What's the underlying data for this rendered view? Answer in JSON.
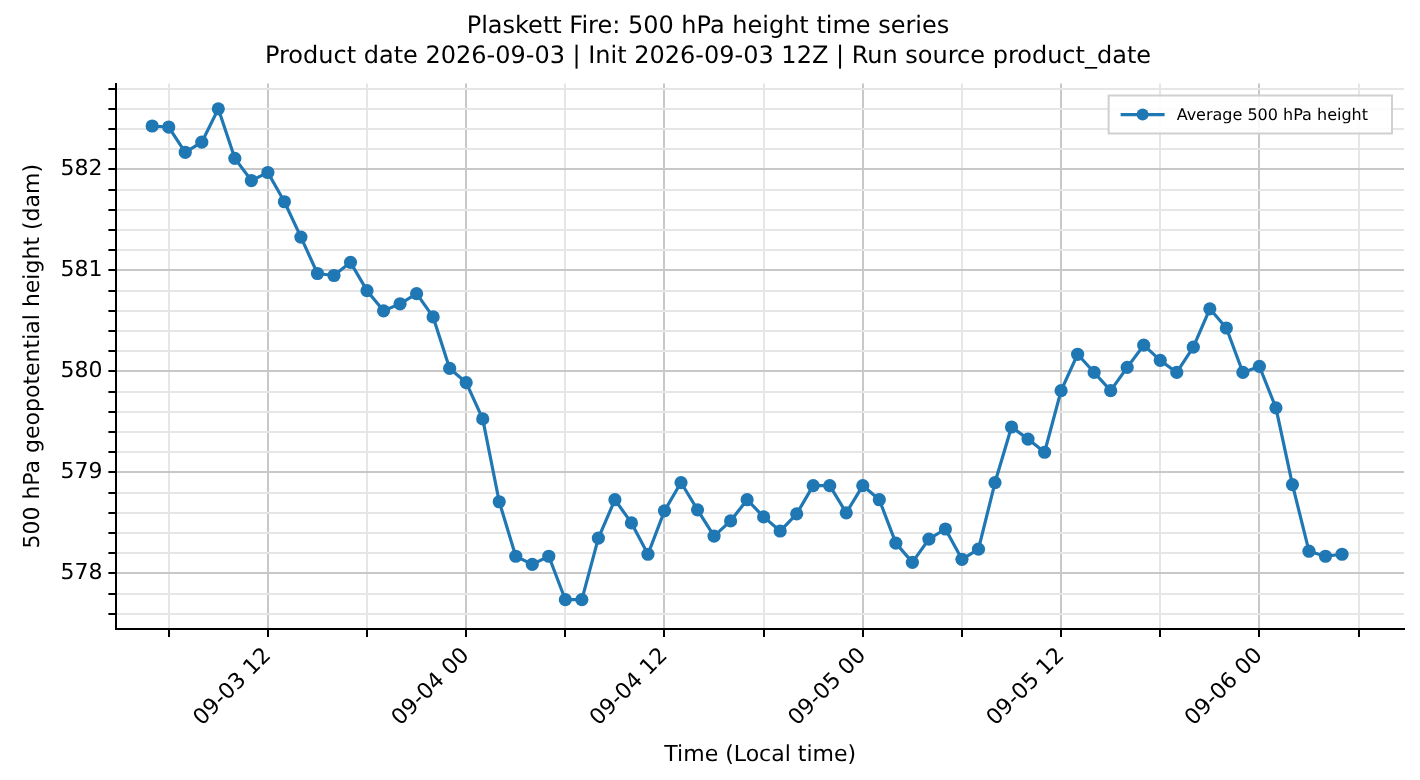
{
  "chart_data": {
    "type": "line",
    "title": "Plaskett Fire: 500 hPa height time series",
    "subtitle": "Product date 2026-09-03 | Init 2026-09-03 12Z | Run source product_date",
    "xlabel": "Time (Local time)",
    "ylabel": "500 hPa geopotential height (dam)",
    "x": [
      "2026-09-03T05:00",
      "2026-09-03T06:00",
      "2026-09-03T07:00",
      "2026-09-03T08:00",
      "2026-09-03T09:00",
      "2026-09-03T10:00",
      "2026-09-03T11:00",
      "2026-09-03T12:00",
      "2026-09-03T13:00",
      "2026-09-03T14:00",
      "2026-09-03T15:00",
      "2026-09-03T16:00",
      "2026-09-03T17:00",
      "2026-09-03T18:00",
      "2026-09-03T19:00",
      "2026-09-03T20:00",
      "2026-09-03T21:00",
      "2026-09-03T22:00",
      "2026-09-03T23:00",
      "2026-09-04T00:00",
      "2026-09-04T01:00",
      "2026-09-04T02:00",
      "2026-09-04T03:00",
      "2026-09-04T04:00",
      "2026-09-04T05:00",
      "2026-09-04T06:00",
      "2026-09-04T07:00",
      "2026-09-04T08:00",
      "2026-09-04T09:00",
      "2026-09-04T10:00",
      "2026-09-04T11:00",
      "2026-09-04T12:00",
      "2026-09-04T13:00",
      "2026-09-04T14:00",
      "2026-09-04T15:00",
      "2026-09-04T16:00",
      "2026-09-04T17:00",
      "2026-09-04T18:00",
      "2026-09-04T19:00",
      "2026-09-04T20:00",
      "2026-09-04T21:00",
      "2026-09-04T22:00",
      "2026-09-04T23:00",
      "2026-09-05T00:00",
      "2026-09-05T01:00",
      "2026-09-05T02:00",
      "2026-09-05T03:00",
      "2026-09-05T04:00",
      "2026-09-05T05:00",
      "2026-09-05T06:00",
      "2026-09-05T07:00",
      "2026-09-05T08:00",
      "2026-09-05T09:00",
      "2026-09-05T10:00",
      "2026-09-05T11:00",
      "2026-09-05T12:00",
      "2026-09-05T13:00",
      "2026-09-05T14:00",
      "2026-09-05T15:00",
      "2026-09-05T16:00",
      "2026-09-05T17:00",
      "2026-09-05T18:00",
      "2026-09-05T19:00",
      "2026-09-05T20:00",
      "2026-09-05T21:00",
      "2026-09-05T22:00",
      "2026-09-05T23:00",
      "2026-09-06T00:00",
      "2026-09-06T01:00",
      "2026-09-06T02:00",
      "2026-09-06T03:00",
      "2026-09-06T04:00",
      "2026-09-06T05:00"
    ],
    "series": [
      {
        "name": "Average 500 hPa height",
        "color": "#1f77b4",
        "values": [
          582.43,
          582.42,
          582.17,
          582.27,
          582.6,
          582.11,
          581.89,
          581.97,
          581.68,
          581.33,
          580.97,
          580.95,
          581.08,
          580.8,
          580.6,
          580.67,
          580.77,
          580.54,
          580.03,
          579.89,
          579.53,
          578.71,
          578.17,
          578.09,
          578.17,
          577.74,
          577.74,
          578.35,
          578.73,
          578.5,
          578.19,
          578.62,
          578.9,
          578.63,
          578.37,
          578.52,
          578.73,
          578.56,
          578.42,
          578.59,
          578.87,
          578.87,
          578.6,
          578.87,
          578.73,
          578.3,
          578.11,
          578.34,
          578.44,
          578.14,
          578.24,
          578.9,
          579.45,
          579.33,
          579.2,
          579.81,
          580.17,
          579.99,
          579.81,
          580.04,
          580.26,
          580.11,
          579.99,
          580.24,
          580.62,
          580.43,
          579.99,
          580.05,
          579.64,
          578.88,
          578.22,
          578.17,
          578.19
        ]
      }
    ],
    "xlim": [
      "2026-09-03T02:50",
      "2026-09-06T08:45"
    ],
    "xticks": [
      {
        "value": "2026-09-03T06:00",
        "label": null
      },
      {
        "value": "2026-09-03T12:00",
        "label": "09-03 12"
      },
      {
        "value": "2026-09-03T18:00",
        "label": null
      },
      {
        "value": "2026-09-04T00:00",
        "label": "09-04 00"
      },
      {
        "value": "2026-09-04T06:00",
        "label": null
      },
      {
        "value": "2026-09-04T12:00",
        "label": "09-04 12"
      },
      {
        "value": "2026-09-04T18:00",
        "label": null
      },
      {
        "value": "2026-09-05T00:00",
        "label": "09-05 00"
      },
      {
        "value": "2026-09-05T06:00",
        "label": null
      },
      {
        "value": "2026-09-05T12:00",
        "label": "09-05 12"
      },
      {
        "value": "2026-09-05T18:00",
        "label": null
      },
      {
        "value": "2026-09-06T00:00",
        "label": "09-06 00"
      },
      {
        "value": "2026-09-06T06:00",
        "label": null
      }
    ],
    "ylim": [
      577.45,
      582.85
    ],
    "yticks": [
      {
        "value": 577.6,
        "label": null
      },
      {
        "value": 577.8,
        "label": null
      },
      578,
      {
        "value": 578.2,
        "label": null
      },
      {
        "value": 578.4,
        "label": null
      },
      {
        "value": 578.6,
        "label": null
      },
      {
        "value": 578.8,
        "label": null
      },
      579,
      {
        "value": 579.2,
        "label": null
      },
      {
        "value": 579.4,
        "label": null
      },
      {
        "value": 579.6,
        "label": null
      },
      {
        "value": 579.8,
        "label": null
      },
      580,
      {
        "value": 580.2,
        "label": null
      },
      {
        "value": 580.4,
        "label": null
      },
      {
        "value": 580.6,
        "label": null
      },
      {
        "value": 580.8,
        "label": null
      },
      581,
      {
        "value": 581.2,
        "label": null
      },
      {
        "value": 581.4,
        "label": null
      },
      {
        "value": 581.6,
        "label": null
      },
      {
        "value": 581.8,
        "label": null
      },
      582,
      {
        "value": 582.2,
        "label": null
      },
      {
        "value": 582.4,
        "label": null
      },
      {
        "value": 582.6,
        "label": null
      },
      {
        "value": 582.8,
        "label": null
      }
    ],
    "grid": true,
    "legend": "top right",
    "marker": "circle",
    "line_style": "solid"
  }
}
